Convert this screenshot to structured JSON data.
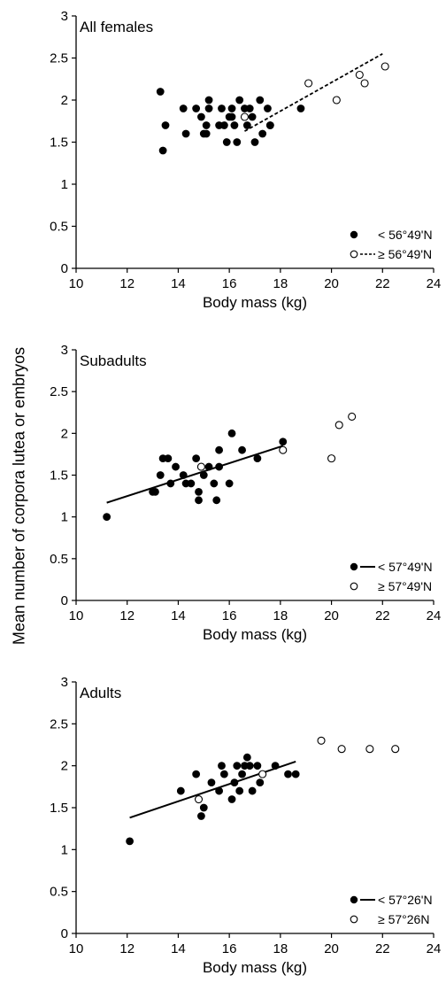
{
  "figure": {
    "shared_ylabel": "Mean number of corpora lutea or embryos"
  },
  "chart_data": [
    {
      "type": "scatter",
      "title": "All females",
      "xlabel": "Body mass (kg)",
      "ylabel": "",
      "xlim": [
        10,
        24
      ],
      "ylim": [
        0,
        3
      ],
      "xticks": [
        "10",
        "12",
        "14",
        "16",
        "18",
        "20",
        "22",
        "24"
      ],
      "yticks": [
        "0",
        "0.5",
        "1",
        "1.5",
        "2",
        "2.5",
        "3"
      ],
      "grid": false,
      "legend_placement": "bottom-right",
      "series": [
        {
          "name": "< 56°49'N",
          "marker": "filled",
          "trendline": null,
          "points": [
            [
              13.3,
              2.1
            ],
            [
              13.4,
              1.4
            ],
            [
              13.5,
              1.7
            ],
            [
              14.2,
              1.9
            ],
            [
              14.3,
              1.6
            ],
            [
              14.7,
              1.9
            ],
            [
              14.9,
              1.8
            ],
            [
              15.0,
              1.6
            ],
            [
              15.1,
              1.6
            ],
            [
              15.1,
              1.7
            ],
            [
              15.2,
              1.9
            ],
            [
              15.2,
              2.0
            ],
            [
              15.6,
              1.7
            ],
            [
              15.7,
              1.9
            ],
            [
              15.8,
              1.7
            ],
            [
              15.9,
              1.5
            ],
            [
              16.0,
              1.8
            ],
            [
              16.1,
              1.8
            ],
            [
              16.1,
              1.9
            ],
            [
              16.2,
              1.7
            ],
            [
              16.3,
              1.5
            ],
            [
              16.4,
              2.0
            ],
            [
              16.6,
              1.9
            ],
            [
              16.7,
              1.7
            ],
            [
              16.8,
              1.9
            ],
            [
              16.9,
              1.8
            ],
            [
              17.0,
              1.5
            ],
            [
              17.2,
              2.0
            ],
            [
              17.3,
              1.6
            ],
            [
              17.5,
              1.9
            ],
            [
              17.6,
              1.7
            ],
            [
              17.6,
              1.7
            ],
            [
              18.8,
              1.9
            ]
          ]
        },
        {
          "name": "≥ 56°49'N",
          "marker": "open",
          "trendline": {
            "style": "dashed",
            "x": [
              16.6,
              22.0
            ],
            "y": [
              1.63,
              2.55
            ]
          },
          "points": [
            [
              16.6,
              1.8
            ],
            [
              19.1,
              2.2
            ],
            [
              20.2,
              2.0
            ],
            [
              21.1,
              2.3
            ],
            [
              21.3,
              2.2
            ],
            [
              22.1,
              2.4
            ]
          ]
        }
      ]
    },
    {
      "type": "scatter",
      "title": "Subadults",
      "xlabel": "Body mass (kg)",
      "ylabel": "",
      "xlim": [
        10,
        24
      ],
      "ylim": [
        0,
        3
      ],
      "xticks": [
        "10",
        "12",
        "14",
        "16",
        "18",
        "20",
        "22",
        "24"
      ],
      "yticks": [
        "0",
        "0.5",
        "1",
        "1.5",
        "2",
        "2.5",
        "3"
      ],
      "grid": false,
      "legend_placement": "bottom-right",
      "series": [
        {
          "name": "< 57°49'N",
          "marker": "filled",
          "trendline": {
            "style": "solid",
            "x": [
              11.2,
              18.1
            ],
            "y": [
              1.17,
              1.85
            ]
          },
          "points": [
            [
              11.2,
              1.0
            ],
            [
              13.0,
              1.3
            ],
            [
              13.1,
              1.3
            ],
            [
              13.3,
              1.5
            ],
            [
              13.4,
              1.7
            ],
            [
              13.6,
              1.7
            ],
            [
              13.7,
              1.4
            ],
            [
              13.9,
              1.6
            ],
            [
              14.2,
              1.5
            ],
            [
              14.3,
              1.4
            ],
            [
              14.5,
              1.4
            ],
            [
              14.7,
              1.7
            ],
            [
              14.8,
              1.2
            ],
            [
              14.8,
              1.3
            ],
            [
              15.0,
              1.5
            ],
            [
              15.2,
              1.6
            ],
            [
              15.4,
              1.4
            ],
            [
              15.5,
              1.2
            ],
            [
              15.6,
              1.6
            ],
            [
              15.6,
              1.8
            ],
            [
              16.0,
              1.4
            ],
            [
              16.1,
              2.0
            ],
            [
              16.5,
              1.8
            ],
            [
              17.1,
              1.7
            ],
            [
              18.1,
              1.9
            ]
          ]
        },
        {
          "name": "≥ 57°49'N",
          "marker": "open",
          "trendline": null,
          "points": [
            [
              14.9,
              1.6
            ],
            [
              18.1,
              1.8
            ],
            [
              20.0,
              1.7
            ],
            [
              20.3,
              2.1
            ],
            [
              20.8,
              2.2
            ]
          ]
        }
      ]
    },
    {
      "type": "scatter",
      "title": "Adults",
      "xlabel": "Body mass (kg)",
      "ylabel": "",
      "xlim": [
        10,
        24
      ],
      "ylim": [
        0,
        3
      ],
      "xticks": [
        "10",
        "12",
        "14",
        "16",
        "18",
        "20",
        "22",
        "24"
      ],
      "yticks": [
        "0",
        "0.5",
        "1",
        "1.5",
        "2",
        "2.5",
        "3"
      ],
      "grid": false,
      "legend_placement": "bottom-right",
      "series": [
        {
          "name": "< 57°26'N",
          "marker": "filled",
          "trendline": {
            "style": "solid",
            "x": [
              12.1,
              18.6
            ],
            "y": [
              1.38,
              2.05
            ]
          },
          "points": [
            [
              12.1,
              1.1
            ],
            [
              14.1,
              1.7
            ],
            [
              14.7,
              1.9
            ],
            [
              14.9,
              1.4
            ],
            [
              15.0,
              1.5
            ],
            [
              15.3,
              1.8
            ],
            [
              15.6,
              1.7
            ],
            [
              15.7,
              2.0
            ],
            [
              15.8,
              1.9
            ],
            [
              16.1,
              1.6
            ],
            [
              16.2,
              1.8
            ],
            [
              16.3,
              2.0
            ],
            [
              16.4,
              1.7
            ],
            [
              16.5,
              1.9
            ],
            [
              16.6,
              2.0
            ],
            [
              16.7,
              2.1
            ],
            [
              16.8,
              2.0
            ],
            [
              16.9,
              1.7
            ],
            [
              17.1,
              2.0
            ],
            [
              17.2,
              1.8
            ],
            [
              17.8,
              2.0
            ],
            [
              18.3,
              1.9
            ],
            [
              18.6,
              1.9
            ]
          ]
        },
        {
          "name": "≥ 57°26N",
          "marker": "open",
          "trendline": null,
          "points": [
            [
              14.8,
              1.6
            ],
            [
              17.3,
              1.9
            ],
            [
              19.6,
              2.3
            ],
            [
              20.4,
              2.2
            ],
            [
              21.5,
              2.2
            ],
            [
              22.5,
              2.2
            ]
          ]
        }
      ]
    }
  ]
}
